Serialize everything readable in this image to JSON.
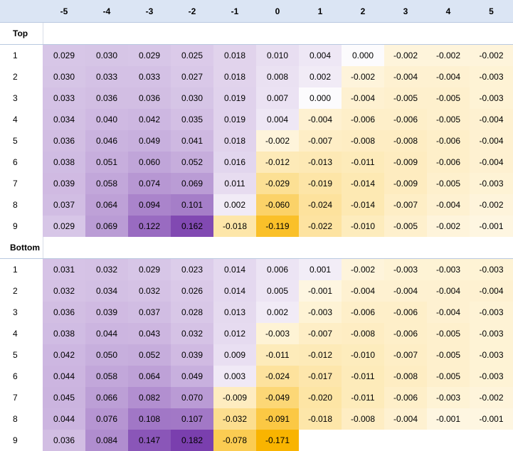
{
  "chart_data": {
    "type": "heatmap",
    "columns": [
      "-5",
      "-4",
      "-3",
      "-2",
      "-1",
      "0",
      "1",
      "2",
      "3",
      "4",
      "5"
    ],
    "sections": [
      {
        "label": "Top",
        "rows": [
          {
            "label": "1",
            "values": [
              "0.029",
              "0.030",
              "0.029",
              "0.025",
              "0.018",
              "0.010",
              "0.004",
              "0.000",
              "-0.002",
              "-0.002",
              "-0.002"
            ]
          },
          {
            "label": "2",
            "values": [
              "0.030",
              "0.033",
              "0.033",
              "0.027",
              "0.018",
              "0.008",
              "0.002",
              "-0.002",
              "-0.004",
              "-0.004",
              "-0.003"
            ]
          },
          {
            "label": "3",
            "values": [
              "0.033",
              "0.036",
              "0.036",
              "0.030",
              "0.019",
              "0.007",
              "0.000",
              "-0.004",
              "-0.005",
              "-0.005",
              "-0.003"
            ]
          },
          {
            "label": "4",
            "values": [
              "0.034",
              "0.040",
              "0.042",
              "0.035",
              "0.019",
              "0.004",
              "-0.004",
              "-0.006",
              "-0.006",
              "-0.005",
              "-0.004"
            ]
          },
          {
            "label": "5",
            "values": [
              "0.036",
              "0.046",
              "0.049",
              "0.041",
              "0.018",
              "-0.002",
              "-0.007",
              "-0.008",
              "-0.008",
              "-0.006",
              "-0.004"
            ]
          },
          {
            "label": "6",
            "values": [
              "0.038",
              "0.051",
              "0.060",
              "0.052",
              "0.016",
              "-0.012",
              "-0.013",
              "-0.011",
              "-0.009",
              "-0.006",
              "-0.004"
            ]
          },
          {
            "label": "7",
            "values": [
              "0.039",
              "0.058",
              "0.074",
              "0.069",
              "0.011",
              "-0.029",
              "-0.019",
              "-0.014",
              "-0.009",
              "-0.005",
              "-0.003"
            ]
          },
          {
            "label": "8",
            "values": [
              "0.037",
              "0.064",
              "0.094",
              "0.101",
              "0.002",
              "-0.060",
              "-0.024",
              "-0.014",
              "-0.007",
              "-0.004",
              "-0.002"
            ]
          },
          {
            "label": "9",
            "values": [
              "0.029",
              "0.069",
              "0.122",
              "0.162",
              "-0.018",
              "-0.119",
              "-0.022",
              "-0.010",
              "-0.005",
              "-0.002",
              "-0.001"
            ]
          }
        ]
      },
      {
        "label": "Bottom",
        "rows": [
          {
            "label": "1",
            "values": [
              "0.031",
              "0.032",
              "0.029",
              "0.023",
              "0.014",
              "0.006",
              "0.001",
              "-0.002",
              "-0.003",
              "-0.003",
              "-0.003"
            ]
          },
          {
            "label": "2",
            "values": [
              "0.032",
              "0.034",
              "0.032",
              "0.026",
              "0.014",
              "0.005",
              "-0.001",
              "-0.004",
              "-0.004",
              "-0.004",
              "-0.004"
            ]
          },
          {
            "label": "3",
            "values": [
              "0.036",
              "0.039",
              "0.037",
              "0.028",
              "0.013",
              "0.002",
              "-0.003",
              "-0.006",
              "-0.006",
              "-0.004",
              "-0.003"
            ]
          },
          {
            "label": "4",
            "values": [
              "0.038",
              "0.044",
              "0.043",
              "0.032",
              "0.012",
              "-0.003",
              "-0.007",
              "-0.008",
              "-0.006",
              "-0.005",
              "-0.003"
            ]
          },
          {
            "label": "5",
            "values": [
              "0.042",
              "0.050",
              "0.052",
              "0.039",
              "0.009",
              "-0.011",
              "-0.012",
              "-0.010",
              "-0.007",
              "-0.005",
              "-0.003"
            ]
          },
          {
            "label": "6",
            "values": [
              "0.044",
              "0.058",
              "0.064",
              "0.049",
              "0.003",
              "-0.024",
              "-0.017",
              "-0.011",
              "-0.008",
              "-0.005",
              "-0.003"
            ]
          },
          {
            "label": "7",
            "values": [
              "0.045",
              "0.066",
              "0.082",
              "0.070",
              "-0.009",
              "-0.049",
              "-0.020",
              "-0.011",
              "-0.006",
              "-0.003",
              "-0.002"
            ]
          },
          {
            "label": "8",
            "values": [
              "0.044",
              "0.076",
              "0.108",
              "0.107",
              "-0.032",
              "-0.091",
              "-0.018",
              "-0.008",
              "-0.004",
              "-0.001",
              "-0.001"
            ]
          },
          {
            "label": "9",
            "values": [
              "0.036",
              "0.084",
              "0.147",
              "0.182",
              "-0.078",
              "-0.171",
              "",
              "",
              "",
              "",
              ""
            ]
          }
        ]
      }
    ],
    "colors": {
      "positive_high": "#7a3fae",
      "neutral": "#ffffff",
      "negative_high": "#f9b400"
    }
  }
}
